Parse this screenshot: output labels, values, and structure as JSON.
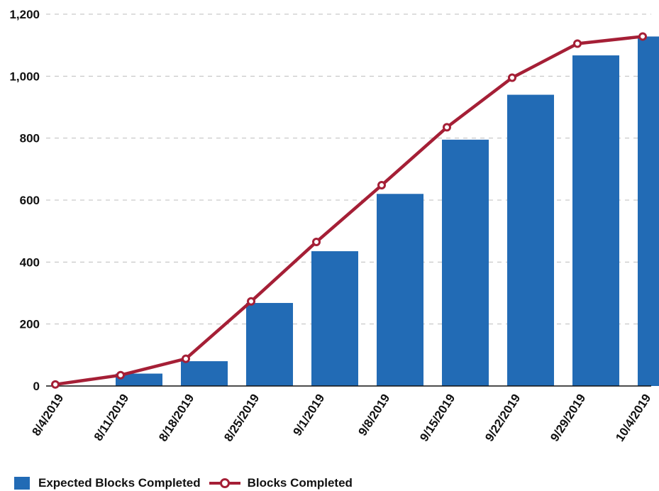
{
  "chart_data": {
    "type": "bar",
    "categories": [
      "8/4/2019",
      "8/11/2019",
      "8/18/2019",
      "8/25/2019",
      "9/1/2019",
      "9/8/2019",
      "9/15/2019",
      "9/22/2019",
      "9/29/2019",
      "10/4/2019"
    ],
    "series": [
      {
        "name": "Expected Blocks Completed",
        "type": "bar",
        "color": "#226bb5",
        "values": [
          0,
          40,
          80,
          268,
          435,
          620,
          795,
          940,
          1067,
          1128
        ]
      },
      {
        "name": "Blocks Completed",
        "type": "line",
        "color": "#a51f36",
        "values": [
          5,
          35,
          88,
          273,
          465,
          648,
          835,
          995,
          1105,
          1128
        ]
      }
    ],
    "yticks": [
      "0",
      "200",
      "400",
      "600",
      "800",
      "1,000",
      "1,200"
    ],
    "ylim": [
      0,
      1200
    ],
    "grid": true,
    "legend_position": "bottom-left"
  }
}
